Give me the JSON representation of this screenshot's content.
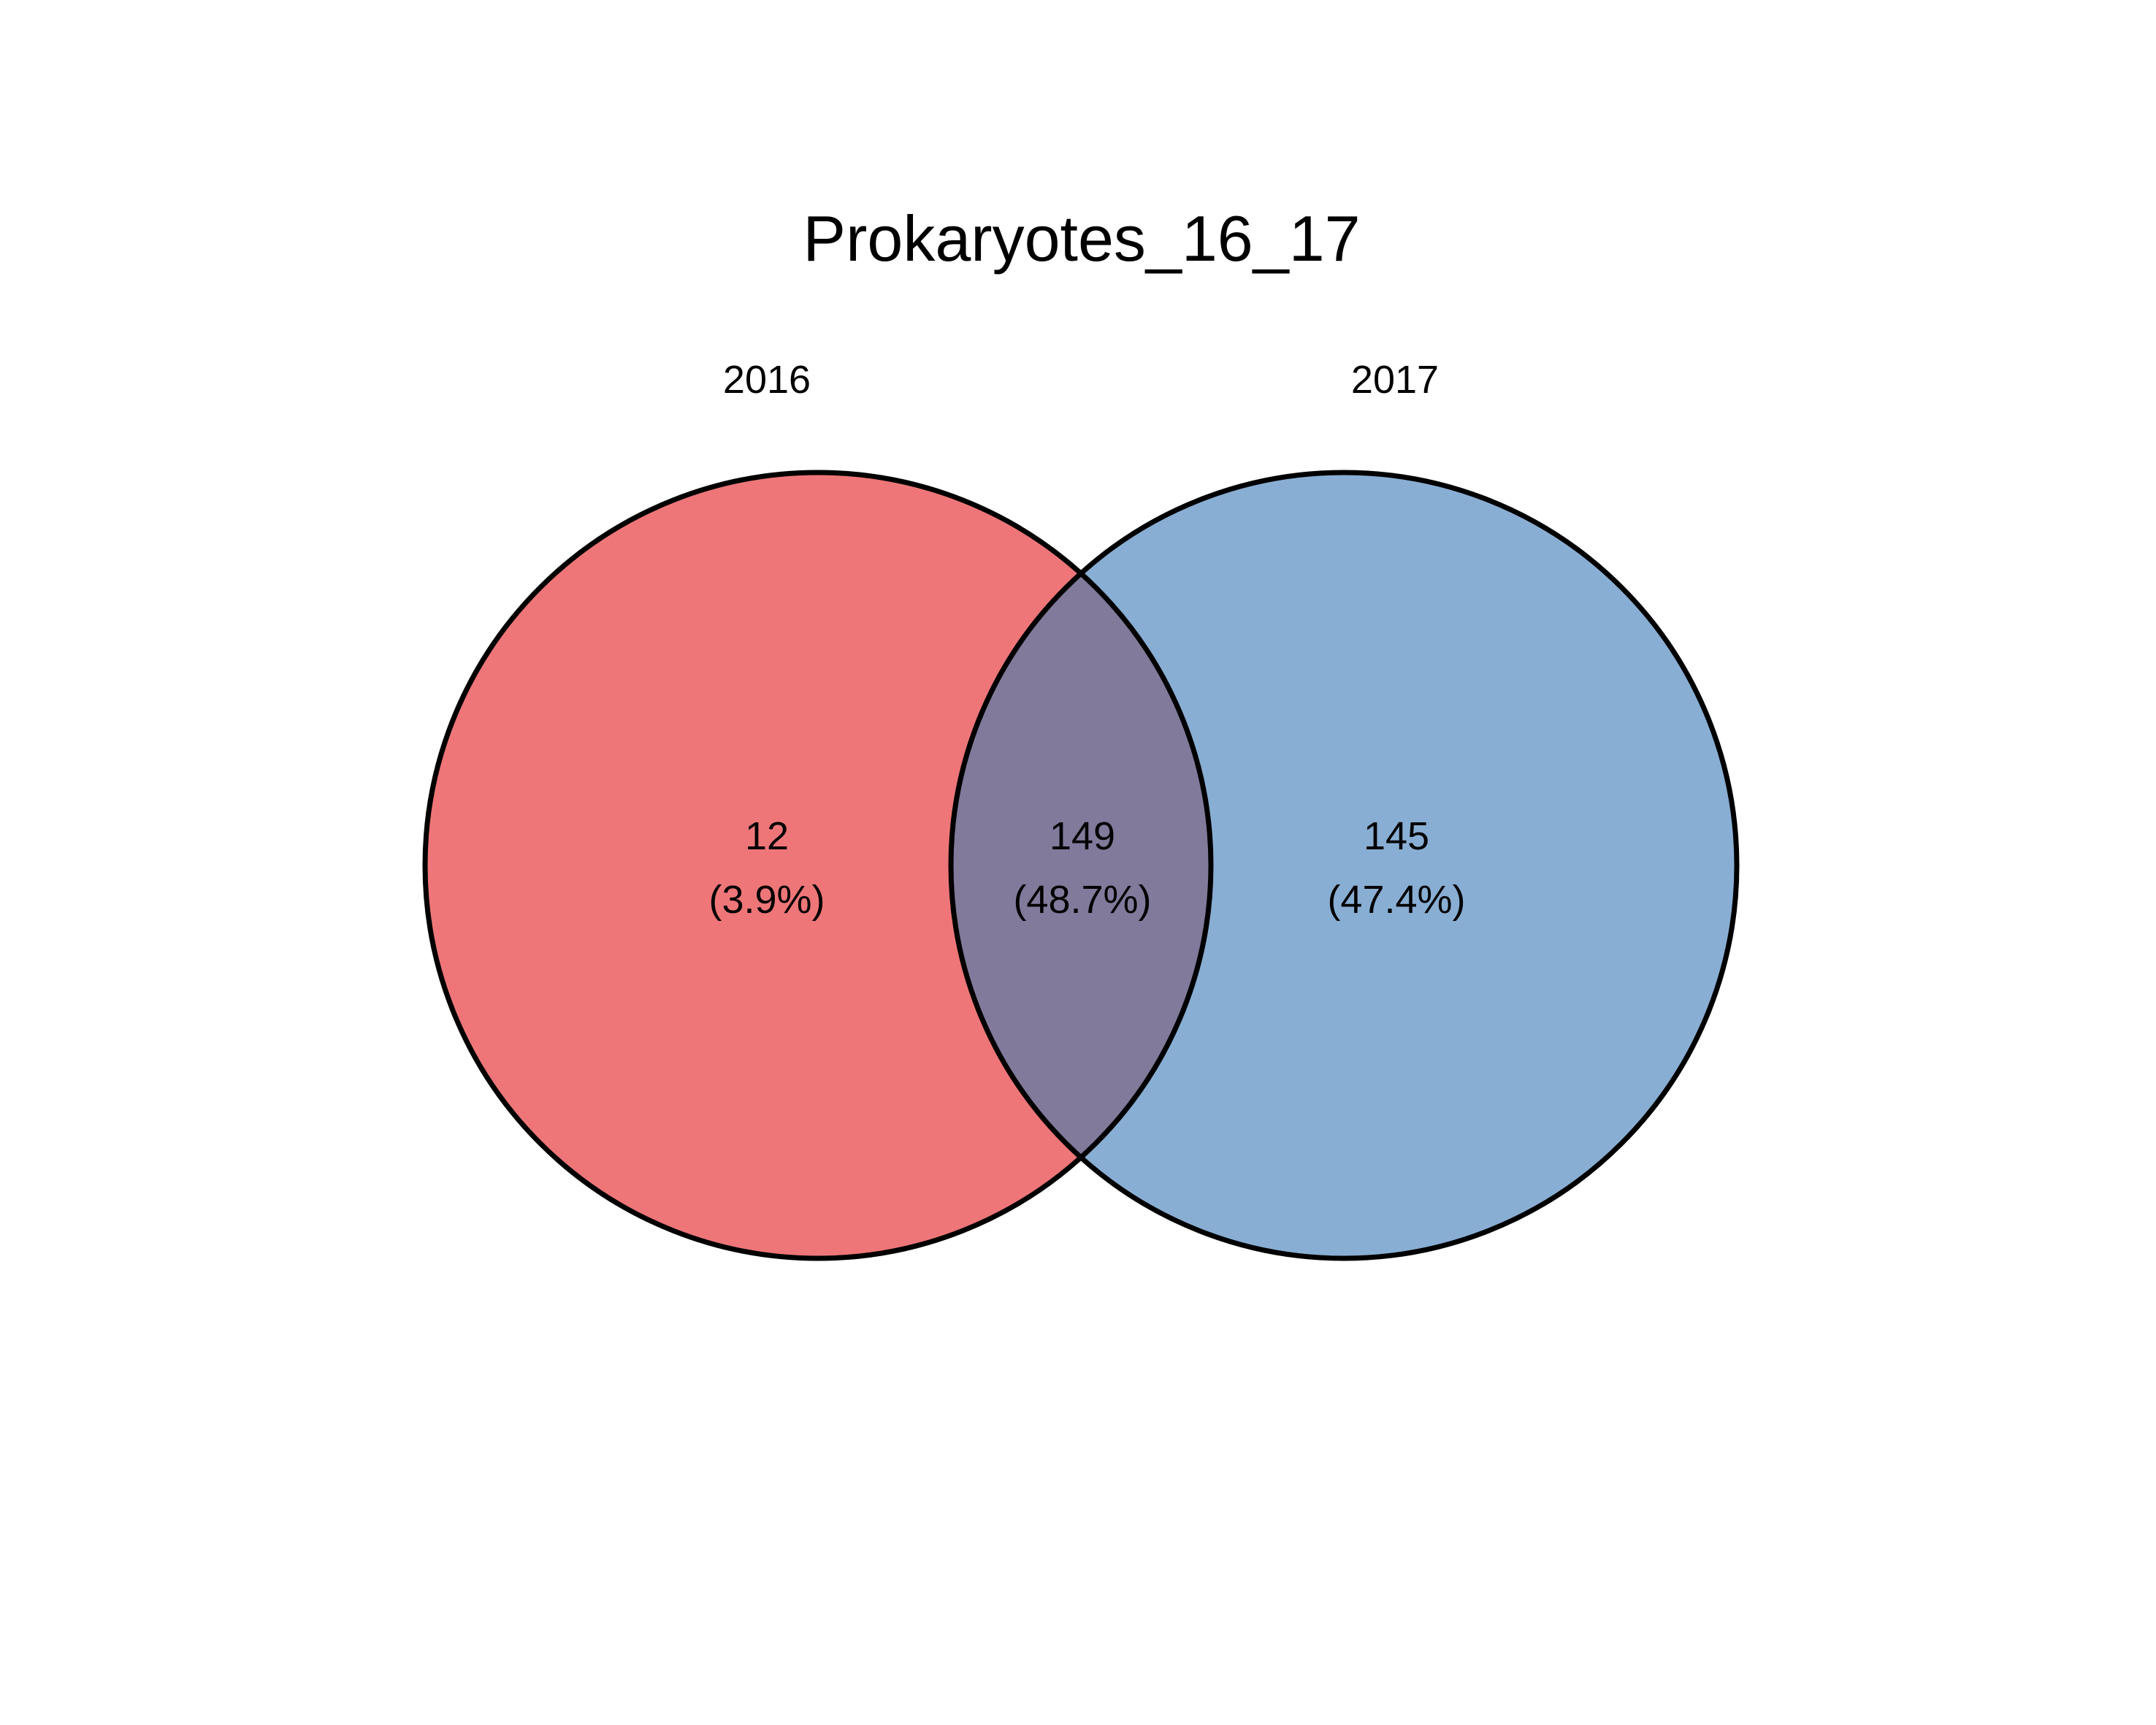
{
  "title": "Prokaryotes_16_17",
  "sets": [
    {
      "name": "2016",
      "color": "#E8484B"
    },
    {
      "name": "2017",
      "color": "#4A82BB"
    }
  ],
  "overlap_color": "#817A9B",
  "regions": {
    "only_2016": {
      "count": "12",
      "percent": "(3.9%)"
    },
    "both": {
      "count": "149",
      "percent": "(48.7%)"
    },
    "only_2017": {
      "count": "145",
      "percent": "(47.4%)"
    }
  }
}
